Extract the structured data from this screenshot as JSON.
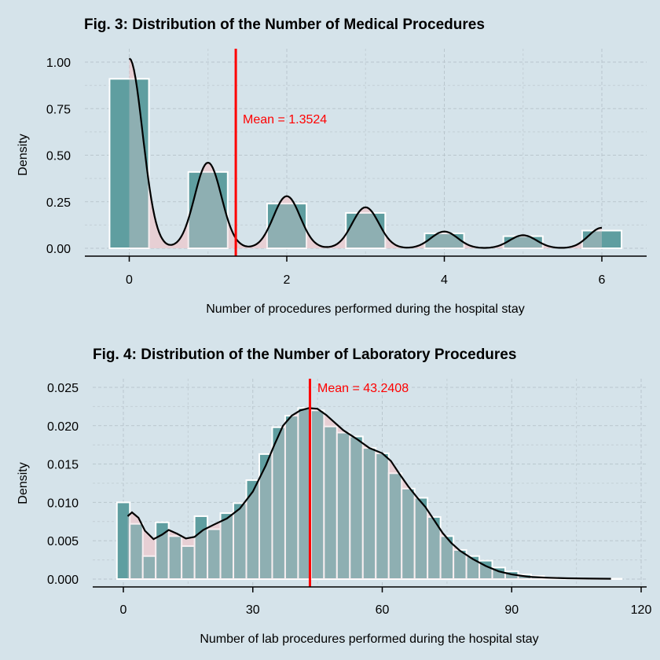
{
  "colors": {
    "background": "#d5e3ea",
    "bar_fill": "#5f9ea0",
    "density_fill": "#e8cdd3",
    "density_line": "#000000",
    "mean_line": "#ff0000"
  },
  "chart_data": [
    {
      "type": "histogram",
      "title": "Fig. 3: Distribution of the Number of Medical Procedures",
      "xlabel": "Number of procedures performed during the hospital stay",
      "ylabel": "Density",
      "xlim": [
        -0.5,
        6.5
      ],
      "ylim": [
        0,
        1.05
      ],
      "x_ticks": [
        0,
        2,
        4,
        6
      ],
      "y_ticks": [
        0,
        0.25,
        0.5,
        0.75,
        1.0
      ],
      "y_tick_labels": [
        "0.00",
        "0.25",
        "0.50",
        "0.75",
        "1.00"
      ],
      "bin_width": 0.5,
      "bins": [
        {
          "x": 0,
          "density": 0.91
        },
        {
          "x": 1,
          "density": 0.41
        },
        {
          "x": 2,
          "density": 0.24
        },
        {
          "x": 3,
          "density": 0.19
        },
        {
          "x": 4,
          "density": 0.08
        },
        {
          "x": 5,
          "density": 0.065
        },
        {
          "x": 6,
          "density": 0.095
        }
      ],
      "density_peaks": [
        {
          "x": 0,
          "y": 1.02
        },
        {
          "x": 1,
          "y": 0.46
        },
        {
          "x": 2,
          "y": 0.28
        },
        {
          "x": 3,
          "y": 0.22
        },
        {
          "x": 4,
          "y": 0.09
        },
        {
          "x": 5,
          "y": 0.07
        },
        {
          "x": 6,
          "y": 0.11
        }
      ],
      "mean": 1.3524,
      "mean_label": "Mean =  1.3524",
      "grid": true
    },
    {
      "type": "histogram",
      "title": "Fig. 4: Distribution of the Number of Laboratory Procedures",
      "xlabel": "Number of lab procedures performed during the hospital stay",
      "ylabel": "Density",
      "xlim": [
        -3,
        121
      ],
      "ylim": [
        0,
        0.026
      ],
      "x_ticks": [
        0,
        30,
        60,
        90,
        120
      ],
      "y_ticks": [
        0,
        0.005,
        0.01,
        0.015,
        0.02,
        0.025
      ],
      "y_tick_labels": [
        "0.000",
        "0.005",
        "0.010",
        "0.015",
        "0.020",
        "0.025"
      ],
      "bin_width": 3,
      "bins": [
        {
          "x": 0,
          "density": 0.01
        },
        {
          "x": 3,
          "density": 0.0072
        },
        {
          "x": 6,
          "density": 0.003
        },
        {
          "x": 9,
          "density": 0.0074
        },
        {
          "x": 12,
          "density": 0.0056
        },
        {
          "x": 15,
          "density": 0.0043
        },
        {
          "x": 18,
          "density": 0.0082
        },
        {
          "x": 21,
          "density": 0.0065
        },
        {
          "x": 24,
          "density": 0.0086
        },
        {
          "x": 27,
          "density": 0.0099
        },
        {
          "x": 30,
          "density": 0.0129
        },
        {
          "x": 33,
          "density": 0.0163
        },
        {
          "x": 36,
          "density": 0.0198
        },
        {
          "x": 39,
          "density": 0.0213
        },
        {
          "x": 42,
          "density": 0.0223
        },
        {
          "x": 45,
          "density": 0.022
        },
        {
          "x": 48,
          "density": 0.0199
        },
        {
          "x": 51,
          "density": 0.0191
        },
        {
          "x": 54,
          "density": 0.0186
        },
        {
          "x": 57,
          "density": 0.0171
        },
        {
          "x": 60,
          "density": 0.0164
        },
        {
          "x": 63,
          "density": 0.0138
        },
        {
          "x": 66,
          "density": 0.0118
        },
        {
          "x": 69,
          "density": 0.0106
        },
        {
          "x": 72,
          "density": 0.0081
        },
        {
          "x": 75,
          "density": 0.0056
        },
        {
          "x": 78,
          "density": 0.0038
        },
        {
          "x": 81,
          "density": 0.003
        },
        {
          "x": 84,
          "density": 0.0024
        },
        {
          "x": 87,
          "density": 0.0015
        },
        {
          "x": 90,
          "density": 0.001
        },
        {
          "x": 93,
          "density": 0.0006
        },
        {
          "x": 96,
          "density": 0.0004
        },
        {
          "x": 99,
          "density": 0.0002
        },
        {
          "x": 102,
          "density": 0.0001
        },
        {
          "x": 105,
          "density": 0.0001
        },
        {
          "x": 108,
          "density": 5e-05
        },
        {
          "x": 111,
          "density": 5e-05
        },
        {
          "x": 114,
          "density": 5e-05
        }
      ],
      "density_curve": [
        [
          1,
          0.0082
        ],
        [
          2,
          0.0087
        ],
        [
          3.5,
          0.008
        ],
        [
          5,
          0.0063
        ],
        [
          7,
          0.0052
        ],
        [
          9,
          0.0058
        ],
        [
          10.5,
          0.0064
        ],
        [
          12.5,
          0.0059
        ],
        [
          14.5,
          0.0053
        ],
        [
          16.5,
          0.0055
        ],
        [
          18.5,
          0.0064
        ],
        [
          21,
          0.0071
        ],
        [
          24,
          0.0079
        ],
        [
          27,
          0.0092
        ],
        [
          30,
          0.0114
        ],
        [
          33,
          0.0148
        ],
        [
          35,
          0.0175
        ],
        [
          37,
          0.02
        ],
        [
          39,
          0.0213
        ],
        [
          41,
          0.022
        ],
        [
          43,
          0.0223
        ],
        [
          45,
          0.0222
        ],
        [
          47,
          0.0214
        ],
        [
          49,
          0.0204
        ],
        [
          51,
          0.0194
        ],
        [
          54,
          0.0183
        ],
        [
          57,
          0.0171
        ],
        [
          60,
          0.0164
        ],
        [
          62,
          0.0154
        ],
        [
          64,
          0.0137
        ],
        [
          66,
          0.0121
        ],
        [
          68,
          0.0107
        ],
        [
          70,
          0.0094
        ],
        [
          72,
          0.0077
        ],
        [
          74,
          0.006
        ],
        [
          76,
          0.0047
        ],
        [
          78,
          0.0037
        ],
        [
          81,
          0.0026
        ],
        [
          84,
          0.0017
        ],
        [
          87,
          0.001
        ],
        [
          90,
          0.0006
        ],
        [
          94,
          0.0003
        ],
        [
          98,
          0.00018
        ],
        [
          103,
          0.0001
        ],
        [
          108,
          6e-05
        ],
        [
          113,
          4e-05
        ]
      ],
      "mean": 43.2408,
      "mean_label": "Mean =  43.2408",
      "grid": true
    }
  ]
}
